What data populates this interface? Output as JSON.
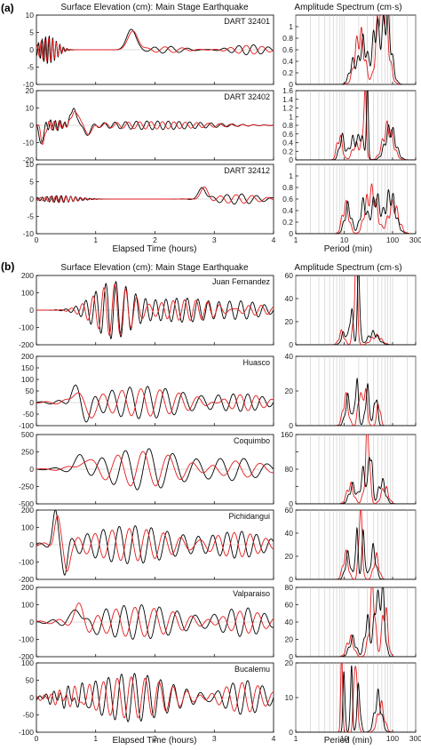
{
  "figure": {
    "panel_labels": [
      "(a)",
      "(b)"
    ],
    "time_title": "Surface Elevation (cm): Main Stage Earthquake",
    "spectrum_title": "Amplitude Spectrum (cm·s)",
    "time_xlabel": "Elapsed Time (hours)",
    "spectrum_xlabel": "Period (min)",
    "colors": {
      "series_1": "#000000",
      "series_2": "#e41a1c",
      "grid": "#bdbdbd",
      "axis": "#000000"
    }
  },
  "chart_data": [
    {
      "id": "a1",
      "type": "line",
      "station": "DART 32401",
      "time": {
        "xlim": [
          0,
          4
        ],
        "xticks": [
          0,
          1,
          2,
          3,
          4
        ],
        "xtick_labels": false,
        "ylim": [
          -10,
          10
        ],
        "yticks": [
          -10,
          -5,
          0,
          5,
          10
        ],
        "features": [
          {
            "c": 0.2,
            "w": 0.2,
            "a": 4,
            "p": 0.06
          },
          {
            "c": 1.6,
            "w": 0.11,
            "a": 6
          },
          {
            "c": 2.2,
            "w": 0.4,
            "a": 1,
            "p": 0.28
          },
          {
            "c": 3.6,
            "w": 0.4,
            "a": 1.5,
            "p": 0.25
          }
        ]
      },
      "spectrum": {
        "xlim": [
          1,
          300
        ],
        "xlog": true,
        "xticks": [
          1,
          10,
          100,
          300
        ],
        "xtick_labels": false,
        "ylim": [
          0,
          1.2
        ],
        "yticks": [
          0,
          0.2,
          0.4,
          0.6,
          0.8,
          1
        ],
        "ytick_labels": [
          "0",
          "0.2",
          "0.4",
          "0.6",
          "0.8",
          "1"
        ],
        "peaks": [
          {
            "c": 25,
            "h": 0.7,
            "w": 0.12
          },
          {
            "c": 45,
            "h": 0.9,
            "w": 0.1
          },
          {
            "c": 75,
            "h": 1.15,
            "w": 0.13
          },
          {
            "c": 15,
            "h": 0.35,
            "w": 0.1
          }
        ],
        "onset": 6
      }
    },
    {
      "id": "a2",
      "type": "line",
      "station": "DART 32402",
      "time": {
        "xlim": [
          0,
          4
        ],
        "xticks": [
          0,
          1,
          2,
          3,
          4
        ],
        "xtick_labels": false,
        "ylim": [
          -20,
          20
        ],
        "yticks": [
          -20,
          -10,
          0,
          10,
          20
        ],
        "features": [
          {
            "c": 0.08,
            "w": 0.04,
            "a": -12
          },
          {
            "c": 0.3,
            "w": 0.25,
            "a": 3,
            "p": 0.08
          },
          {
            "c": 0.63,
            "w": 0.08,
            "a": 9
          },
          {
            "c": 0.85,
            "w": 0.08,
            "a": -5
          },
          {
            "c": 2.0,
            "w": 1.2,
            "a": 2.5,
            "p": 0.18
          }
        ]
      },
      "spectrum": {
        "xlim": [
          1,
          300
        ],
        "xlog": true,
        "xticks": [
          1,
          10,
          100,
          300
        ],
        "xtick_labels": false,
        "ylim": [
          0,
          1.6
        ],
        "yticks": [
          0,
          0.2,
          0.4,
          0.6,
          0.8,
          1,
          1.2,
          1.4,
          1.6
        ],
        "ytick_labels": [
          "0",
          "0.2",
          "0.4",
          "0.6",
          "0.8",
          "1",
          "1.2",
          "1.4",
          "1.6"
        ],
        "peaks": [
          {
            "c": 9,
            "h": 0.5,
            "w": 0.08
          },
          {
            "c": 15,
            "h": 0.45,
            "w": 0.1
          },
          {
            "c": 30,
            "h": 1.5,
            "w": 0.03
          },
          {
            "c": 22,
            "h": 0.55,
            "w": 0.08
          },
          {
            "c": 90,
            "h": 0.7,
            "w": 0.15
          }
        ],
        "onset": 4
      }
    },
    {
      "id": "a3",
      "type": "line",
      "station": "DART 32412",
      "time": {
        "xlim": [
          0,
          4
        ],
        "xticks": [
          0,
          1,
          2,
          3,
          4
        ],
        "xtick_labels": [
          "0",
          "1",
          "2",
          "3",
          "4"
        ],
        "ylim": [
          -10,
          10
        ],
        "yticks": [
          -10,
          -5,
          0,
          5,
          10
        ],
        "features": [
          {
            "c": 0.4,
            "w": 0.4,
            "a": 1,
            "p": 0.08
          },
          {
            "c": 2.8,
            "w": 0.08,
            "a": 3.5
          },
          {
            "c": 3.4,
            "w": 0.5,
            "a": 1.5,
            "p": 0.25
          }
        ]
      },
      "spectrum": {
        "xlim": [
          1,
          300
        ],
        "xlog": true,
        "xticks": [
          1,
          10,
          100,
          300
        ],
        "xtick_labels": [
          "1",
          "10",
          "100",
          "300"
        ],
        "ylim": [
          0,
          1.2
        ],
        "yticks": [
          0,
          0.2,
          0.4,
          0.6,
          0.8,
          1
        ],
        "ytick_labels": [
          "0",
          "0.2",
          "0.4",
          "0.6",
          "0.8",
          "1"
        ],
        "peaks": [
          {
            "c": 12,
            "h": 0.45,
            "w": 0.1
          },
          {
            "c": 25,
            "h": 0.5,
            "w": 0.1
          },
          {
            "c": 45,
            "h": 0.6,
            "w": 0.12
          },
          {
            "c": 90,
            "h": 0.65,
            "w": 0.15
          }
        ],
        "onset": 5
      }
    },
    {
      "id": "b1",
      "type": "line",
      "station": "Juan Fernandez",
      "time": {
        "xlim": [
          0,
          4
        ],
        "xticks": [
          0,
          1,
          2,
          3,
          4
        ],
        "xtick_labels": false,
        "ylim": [
          -200,
          200
        ],
        "yticks": [
          -200,
          -100,
          0,
          100,
          200
        ],
        "features": [
          {
            "c": 1.3,
            "w": 0.45,
            "a": 170,
            "p": 0.17
          },
          {
            "c": 2.5,
            "w": 0.8,
            "a": 70,
            "p": 0.18
          },
          {
            "c": 3.6,
            "w": 0.5,
            "a": 40,
            "p": 0.2
          }
        ]
      },
      "spectrum": {
        "xlim": [
          1,
          300
        ],
        "xlog": true,
        "xticks": [
          1,
          10,
          100,
          300
        ],
        "xtick_labels": false,
        "ylim": [
          0,
          60
        ],
        "yticks": [
          0,
          20,
          40,
          60
        ],
        "ytick_labels": [
          "0",
          "20",
          "40",
          "60"
        ],
        "peaks": [
          {
            "c": 10,
            "h": 10,
            "w": 0.08
          },
          {
            "c": 14,
            "h": 30,
            "w": 0.05
          },
          {
            "c": 20,
            "h": 60,
            "w": 0.04
          },
          {
            "c": 40,
            "h": 10,
            "w": 0.15
          }
        ],
        "onset": 3
      }
    },
    {
      "id": "b2",
      "type": "line",
      "station": "Huasco",
      "time": {
        "xlim": [
          0,
          4
        ],
        "xticks": [
          0,
          1,
          2,
          3,
          4
        ],
        "xtick_labels": false,
        "ylim": [
          -100,
          200
        ],
        "yticks": [
          -100,
          -50,
          0,
          50,
          100,
          150,
          200
        ],
        "features": [
          {
            "c": 0.65,
            "w": 0.1,
            "a": 60
          },
          {
            "c": 0.85,
            "w": 0.1,
            "a": -60
          },
          {
            "c": 1.8,
            "w": 1.0,
            "a": 70,
            "p": 0.3
          },
          {
            "c": 3.5,
            "w": 0.5,
            "a": 40,
            "p": 0.25
          }
        ]
      },
      "spectrum": {
        "xlim": [
          1,
          300
        ],
        "xlog": true,
        "xticks": [
          1,
          10,
          100,
          300
        ],
        "xtick_labels": false,
        "ylim": [
          0,
          40
        ],
        "yticks": [
          0,
          20,
          40
        ],
        "ytick_labels": [
          "0",
          "20",
          "40"
        ],
        "peaks": [
          {
            "c": 12,
            "h": 15,
            "w": 0.08
          },
          {
            "c": 18,
            "h": 25,
            "w": 0.05
          },
          {
            "c": 30,
            "h": 20,
            "w": 0.06
          },
          {
            "c": 45,
            "h": 18,
            "w": 0.05
          }
        ],
        "onset": 4
      }
    },
    {
      "id": "b3",
      "type": "line",
      "station": "Coquimbo",
      "time": {
        "xlim": [
          0,
          4
        ],
        "xticks": [
          0,
          1,
          2,
          3,
          4
        ],
        "xtick_labels": false,
        "ylim": [
          -500,
          500
        ],
        "yticks": [
          -500,
          -250,
          0,
          250,
          500
        ],
        "features": [
          {
            "c": 0.75,
            "w": 0.12,
            "a": 150
          },
          {
            "c": 1.8,
            "w": 0.9,
            "a": 300,
            "p": 0.4
          },
          {
            "c": 3.4,
            "w": 0.6,
            "a": 150,
            "p": 0.4
          }
        ]
      },
      "spectrum": {
        "xlim": [
          1,
          300
        ],
        "xlog": true,
        "xticks": [
          1,
          10,
          100,
          300
        ],
        "xtick_labels": false,
        "ylim": [
          0,
          160
        ],
        "yticks": [
          0,
          40,
          80,
          120,
          160
        ],
        "ytick_labels": [
          "0",
          "",
          "80",
          "",
          "160"
        ],
        "peaks": [
          {
            "c": 15,
            "h": 40,
            "w": 0.1
          },
          {
            "c": 25,
            "h": 70,
            "w": 0.08
          },
          {
            "c": 35,
            "h": 130,
            "w": 0.05
          },
          {
            "c": 60,
            "h": 50,
            "w": 0.1
          }
        ],
        "onset": 4
      }
    },
    {
      "id": "b4",
      "type": "line",
      "station": "Pichidangui",
      "time": {
        "xlim": [
          0,
          4
        ],
        "xticks": [
          0,
          1,
          2,
          3,
          4
        ],
        "xtick_labels": false,
        "ylim": [
          -200,
          200
        ],
        "yticks": [
          -200,
          -100,
          0,
          100,
          200
        ],
        "features": [
          {
            "c": 0.32,
            "w": 0.06,
            "a": 180
          },
          {
            "c": 0.48,
            "w": 0.06,
            "a": -150
          },
          {
            "c": 1.6,
            "w": 1.0,
            "a": 110,
            "p": 0.27
          },
          {
            "c": 3.4,
            "w": 0.6,
            "a": 80,
            "p": 0.25
          }
        ]
      },
      "spectrum": {
        "xlim": [
          1,
          300
        ],
        "xlog": true,
        "xticks": [
          1,
          10,
          100,
          300
        ],
        "xtick_labels": false,
        "ylim": [
          0,
          60
        ],
        "yticks": [
          0,
          20,
          40,
          60
        ],
        "ytick_labels": [
          "0",
          "20",
          "40",
          "60"
        ],
        "peaks": [
          {
            "c": 12,
            "h": 20,
            "w": 0.08
          },
          {
            "c": 18,
            "h": 42,
            "w": 0.04
          },
          {
            "c": 25,
            "h": 35,
            "w": 0.05
          },
          {
            "c": 40,
            "h": 25,
            "w": 0.08
          }
        ],
        "onset": 4
      }
    },
    {
      "id": "b5",
      "type": "line",
      "station": "Valparaiso",
      "time": {
        "xlim": [
          0,
          4
        ],
        "xticks": [
          0,
          1,
          2,
          3,
          4
        ],
        "xtick_labels": false,
        "ylim": [
          -200,
          200
        ],
        "yticks": [
          -200,
          -100,
          0,
          100,
          200
        ],
        "features": [
          {
            "c": 0.7,
            "w": 0.1,
            "a": 90
          },
          {
            "c": 0.9,
            "w": 0.1,
            "a": -40
          },
          {
            "c": 1.7,
            "w": 1.0,
            "a": 100,
            "p": 0.3
          },
          {
            "c": 3.5,
            "w": 0.5,
            "a": 80,
            "p": 0.28
          }
        ]
      },
      "spectrum": {
        "xlim": [
          1,
          300
        ],
        "xlog": true,
        "xticks": [
          1,
          10,
          100,
          300
        ],
        "xtick_labels": false,
        "ylim": [
          0,
          80
        ],
        "yticks": [
          0,
          20,
          40,
          60,
          80
        ],
        "ytick_labels": [
          "0",
          "20",
          "40",
          "60",
          "80"
        ],
        "peaks": [
          {
            "c": 15,
            "h": 20,
            "w": 0.1
          },
          {
            "c": 30,
            "h": 40,
            "w": 0.08
          },
          {
            "c": 45,
            "h": 60,
            "w": 0.06
          },
          {
            "c": 60,
            "h": 75,
            "w": 0.08
          }
        ],
        "onset": 4
      }
    },
    {
      "id": "b6",
      "type": "line",
      "station": "Bucalemu",
      "time": {
        "xlim": [
          0,
          4
        ],
        "xticks": [
          0,
          1,
          2,
          3,
          4
        ],
        "xtick_labels": [
          "0",
          "1",
          "2",
          "3",
          "4"
        ],
        "ylim": [
          -100,
          100
        ],
        "yticks": [
          -100,
          -50,
          0,
          50,
          100
        ],
        "features": [
          {
            "c": 0.5,
            "w": 0.4,
            "a": 20,
            "p": 0.12
          },
          {
            "c": 1.6,
            "w": 0.9,
            "a": 70,
            "p": 0.22
          },
          {
            "c": 3.5,
            "w": 0.5,
            "a": 50,
            "p": 0.25
          }
        ]
      },
      "spectrum": {
        "xlim": [
          1,
          300
        ],
        "xlog": true,
        "xticks": [
          1,
          10,
          100,
          300
        ],
        "xtick_labels": [
          "1",
          "10",
          "100",
          "300"
        ],
        "ylim": [
          0,
          20
        ],
        "yticks": [
          0,
          10,
          20
        ],
        "ytick_labels": [
          "0",
          "10",
          "20"
        ],
        "peaks": [
          {
            "c": 10,
            "h": 18,
            "w": 0.03
          },
          {
            "c": 14,
            "h": 20,
            "w": 0.03
          },
          {
            "c": 20,
            "h": 12,
            "w": 0.05
          },
          {
            "c": 50,
            "h": 10,
            "w": 0.1
          }
        ],
        "onset": 4
      }
    }
  ]
}
